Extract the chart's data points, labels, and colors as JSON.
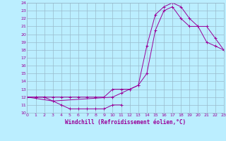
{
  "xlabel": "Windchill (Refroidissement éolien,°C)",
  "xlim": [
    0,
    23
  ],
  "ylim": [
    10,
    24
  ],
  "xticks": [
    0,
    1,
    2,
    3,
    4,
    5,
    6,
    7,
    8,
    9,
    10,
    11,
    12,
    13,
    14,
    15,
    16,
    17,
    18,
    19,
    20,
    21,
    22,
    23
  ],
  "yticks": [
    10,
    11,
    12,
    13,
    14,
    15,
    16,
    17,
    18,
    19,
    20,
    21,
    22,
    23,
    24
  ],
  "line_color": "#990099",
  "bg_color": "#bbeeff",
  "grid_color": "#99bbcc",
  "line1_x": [
    0,
    1,
    2,
    3,
    4,
    5,
    6,
    7,
    8,
    9,
    10,
    11,
    12,
    13,
    14,
    15,
    16,
    17,
    18,
    19,
    20,
    21,
    22,
    23
  ],
  "line1_y": [
    12,
    12,
    12,
    12,
    12,
    12,
    12,
    12,
    12,
    12,
    13,
    13,
    13,
    13.5,
    15,
    20.5,
    23,
    23.5,
    22,
    21,
    21,
    19,
    18.5,
    18
  ],
  "line2_x": [
    0,
    1,
    2,
    3,
    10,
    11,
    12,
    13,
    14,
    15,
    16,
    17,
    18,
    19,
    20,
    21,
    22,
    23
  ],
  "line2_y": [
    12,
    12,
    12,
    11.5,
    12,
    12.5,
    13,
    13.5,
    18.5,
    22.5,
    23.5,
    24,
    23.5,
    22,
    21,
    21,
    19.5,
    18
  ],
  "line3_x": [
    0,
    3,
    4,
    5,
    6,
    7,
    8,
    9,
    10,
    11
  ],
  "line3_y": [
    12,
    11.5,
    11,
    10.5,
    10.5,
    10.5,
    10.5,
    10.5,
    11,
    11
  ]
}
